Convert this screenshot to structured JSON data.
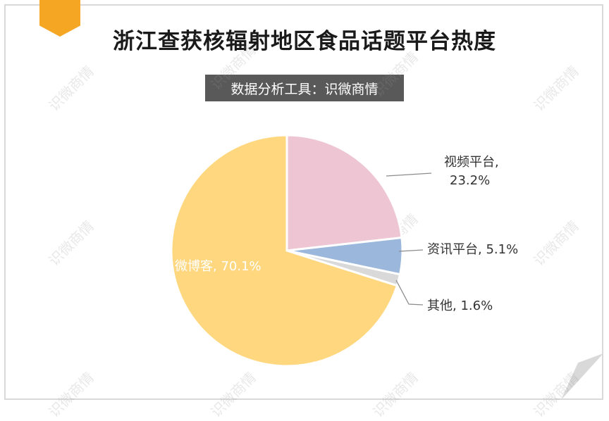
{
  "title": "浙江查获核辐射地区食品话题平台热度",
  "subtitle": "数据分析工具：识微商情",
  "watermark": "识微商情",
  "chart_data": {
    "type": "pie",
    "title": "浙江查获核辐射地区食品话题平台热度",
    "subtitle": "数据分析工具：识微商情",
    "slices": [
      {
        "name": "视频平台",
        "value": 23.2,
        "label_line1": "视频平台,",
        "label_line2": "23.2%",
        "color": "#eec5d2"
      },
      {
        "name": "资讯平台",
        "value": 5.1,
        "label_line1": "资讯平台, 5.1%",
        "label_line2": "",
        "color": "#9cb7dc"
      },
      {
        "name": "其他",
        "value": 1.6,
        "label_line1": "其他, 1.6%",
        "label_line2": "",
        "color": "#d9d9d9"
      },
      {
        "name": "微博客",
        "value": 70.1,
        "label_line1": "微博客, 70.1%",
        "label_line2": "",
        "color": "#ffd77f"
      }
    ],
    "start_angle_deg": 0,
    "direction": "clockwise",
    "legend": "none"
  },
  "colors": {
    "accent": "#f5a623",
    "subtitle_bg": "#595959",
    "frame": "#d9d9d9"
  }
}
